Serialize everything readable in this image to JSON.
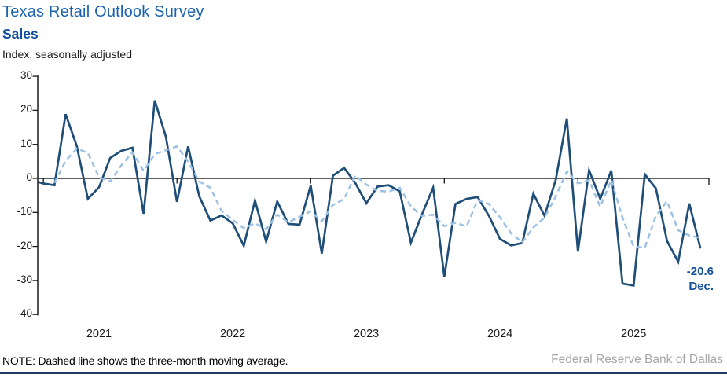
{
  "header": {
    "title": "Texas Retail Outlook Survey",
    "subtitle": "Sales",
    "units_label": "Index, seasonally adjusted"
  },
  "chart_data": {
    "type": "line",
    "title": "Texas Retail Outlook Survey",
    "subtitle": "Sales",
    "ylabel": "Index, seasonally adjusted",
    "ylim": [
      -40,
      30
    ],
    "y_ticks": [
      30,
      20,
      10,
      0,
      -10,
      -20,
      -30,
      -40
    ],
    "x_year_labels": [
      "2021",
      "2022",
      "2023",
      "2024",
      "2025"
    ],
    "frequency": "monthly",
    "first_point": "Dec 2020",
    "last_point": "Dec 2025",
    "grid": false,
    "legend_position": "none",
    "series": [
      {
        "name": "Sales index",
        "style": "solid",
        "color": "#1F4E79",
        "values": [
          -0.5,
          -1.5,
          -2.0,
          18.9,
          9.5,
          -6.0,
          -2.6,
          6.0,
          8.1,
          9.0,
          -10.4,
          22.9,
          12.3,
          -6.9,
          9.4,
          -5.3,
          -12.4,
          -10.9,
          -13.2,
          -19.8,
          -6.5,
          -18.6,
          -6.8,
          -13.4,
          -13.6,
          -2.1,
          -22.1,
          0.8,
          3.1,
          -1.3,
          -7.3,
          -2.4,
          -2.0,
          -3.8,
          -18.9,
          -10.5,
          -2.7,
          -28.9,
          -7.5,
          -6.0,
          -5.5,
          -11.0,
          -17.8,
          -19.7,
          -19.0,
          -4.5,
          -11.0,
          -0.5,
          17.6,
          -21.5,
          2.4,
          -6.0,
          2.3,
          -30.9,
          -31.5,
          1.2,
          -2.9,
          -18.4,
          -24.5,
          -7.4,
          -20.6
        ]
      },
      {
        "name": "Three-month moving average",
        "style": "dashed",
        "color": "#9DC1E4",
        "derived_from": "three-month moving average of Sales index"
      }
    ],
    "annotation": {
      "value": "-20.6",
      "period": "Dec."
    }
  },
  "footer": {
    "note": "NOTE: Dashed line shows the three-month moving average.",
    "source": "Federal Reserve Bank of Dallas"
  }
}
